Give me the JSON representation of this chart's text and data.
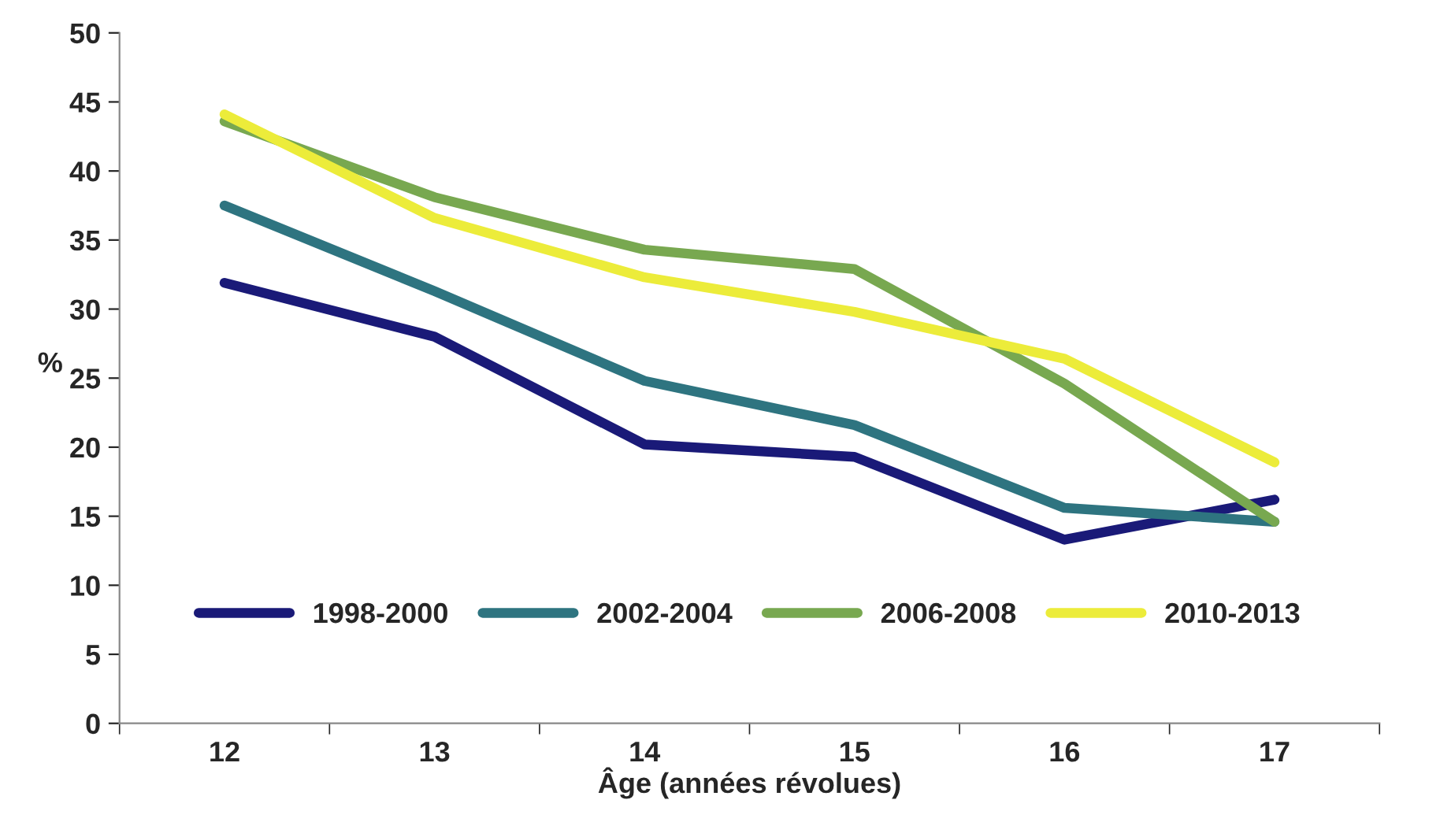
{
  "chart_data": {
    "type": "line",
    "xlabel": "Âge (années révolues)",
    "ylabel": "%",
    "categories": [
      "12",
      "13",
      "14",
      "15",
      "16",
      "17"
    ],
    "series": [
      {
        "name": "1998-2000",
        "color": "#1a1a78",
        "values": [
          31.9,
          28.0,
          20.2,
          19.3,
          13.3,
          16.2
        ]
      },
      {
        "name": "2002-2004",
        "color": "#2e7480",
        "values": [
          37.5,
          31.3,
          24.8,
          21.6,
          15.6,
          14.6
        ]
      },
      {
        "name": "2006-2008",
        "color": "#78a850",
        "values": [
          43.6,
          38.1,
          34.3,
          32.9,
          24.6,
          14.6
        ]
      },
      {
        "name": "2010-2013",
        "color": "#ecec3a",
        "values": [
          44.1,
          36.6,
          32.3,
          29.8,
          26.4,
          18.9
        ]
      }
    ],
    "ylim": [
      0,
      50
    ],
    "yticks": [
      0,
      5,
      10,
      15,
      20,
      25,
      30,
      35,
      40,
      45,
      50
    ],
    "grid": false,
    "legend": "bottom",
    "marker": "none",
    "line_style": "solid"
  }
}
